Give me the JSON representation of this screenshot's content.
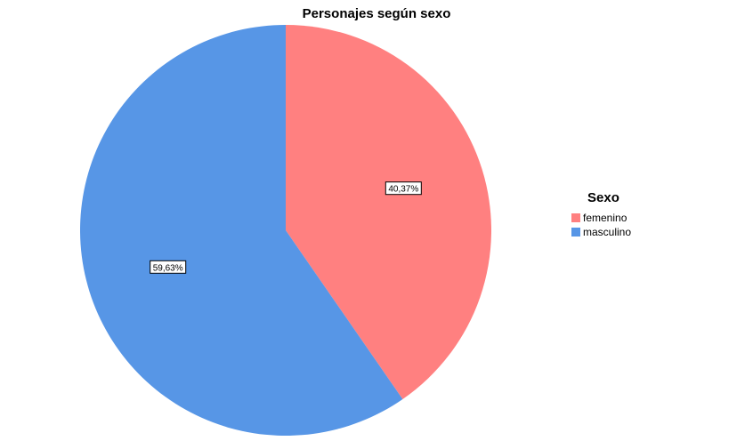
{
  "chart_data": {
    "type": "pie",
    "title": "Personajes según sexo",
    "legend_title": "Sexo",
    "legend_position": "right",
    "slices": [
      {
        "label": "femenino",
        "value": 40.37,
        "display": "40,37%",
        "color": "#ff8080"
      },
      {
        "label": "masculino",
        "value": 59.63,
        "display": "59,63%",
        "color": "#5796e6"
      }
    ]
  }
}
